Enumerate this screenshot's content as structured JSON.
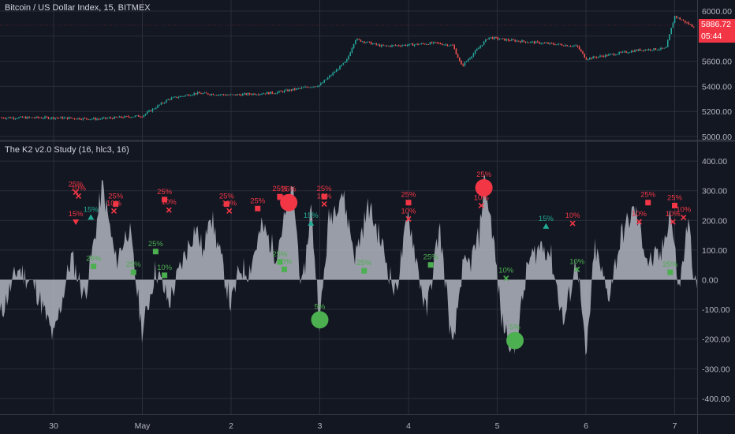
{
  "colors": {
    "background": "#131722",
    "grid": "#2a2e39",
    "text": "#b2b5be",
    "candle_up": "#26a69a",
    "candle_down": "#ef5350",
    "hist_fill": "#b2b5be",
    "signal_red": "#f23645",
    "signal_green": "#4caf50",
    "signal_teal": "#22ab94"
  },
  "top_pane": {
    "title": "Bitcoin / US Dollar Index, 15, BITMEX",
    "last_price": "5886.72",
    "countdown": "05:44",
    "y_ticks": [
      "6000.00",
      "5800.00",
      "5600.00",
      "5400.00",
      "5200.00",
      "5000.00"
    ]
  },
  "bottom_pane": {
    "title": "The K2 v2.0 Study (16, hlc3, 16)",
    "y_ticks": [
      "400.00",
      "300.00",
      "200.00",
      "100.00",
      "0.00",
      "-100.00",
      "-200.00",
      "-300.00",
      "-400.00"
    ]
  },
  "x_axis": {
    "ticks": [
      "30",
      "May",
      "2",
      "3",
      "4",
      "5",
      "6",
      "7"
    ]
  },
  "chart_data": [
    {
      "type": "line",
      "title": "Bitcoin / US Dollar Index, 15, BITMEX",
      "note": "candlestick price chart (approximate path)",
      "ylim": [
        5000,
        6000
      ],
      "x": [
        0,
        0.5,
        1,
        1.3,
        1.6,
        2,
        2.5,
        3,
        3.3,
        3.4,
        3.7,
        4,
        4.3,
        4.5,
        4.6,
        4.9,
        5.1,
        5.5,
        5.9,
        6,
        6.3,
        6.6,
        6.9,
        7,
        7.2,
        7.3
      ],
      "values": [
        5150,
        5140,
        5165,
        5300,
        5345,
        5330,
        5350,
        5410,
        5600,
        5775,
        5720,
        5730,
        5745,
        5725,
        5560,
        5790,
        5770,
        5745,
        5720,
        5620,
        5655,
        5690,
        5700,
        5960,
        5880,
        5887
      ]
    },
    {
      "type": "area",
      "title": "The K2 v2.0 Study (16, hlc3, 16)",
      "ylim": [
        -450,
        450
      ],
      "x": [
        -0.6,
        -0.4,
        -0.2,
        0.0,
        0.2,
        0.35,
        0.45,
        0.55,
        0.7,
        0.85,
        1.0,
        1.15,
        1.3,
        1.45,
        1.6,
        1.7,
        1.75,
        1.85,
        2.0,
        2.1,
        2.2,
        2.35,
        2.5,
        2.6,
        2.7,
        2.8,
        2.9,
        3.0,
        3.1,
        3.25,
        3.4,
        3.55,
        3.7,
        3.85,
        4.0,
        4.2,
        4.35,
        4.5,
        4.6,
        4.7,
        4.8,
        4.85,
        4.95,
        5.05,
        5.2,
        5.35,
        5.5,
        5.6,
        5.75,
        5.9,
        6.0,
        6.1,
        6.25,
        6.4,
        6.55,
        6.7,
        6.85,
        6.95,
        7.05,
        7.15,
        7.25
      ],
      "values": [
        -120,
        40,
        -30,
        -200,
        80,
        -60,
        120,
        320,
        60,
        180,
        -180,
        40,
        -80,
        60,
        180,
        80,
        250,
        120,
        -90,
        40,
        30,
        180,
        90,
        200,
        300,
        -50,
        250,
        -150,
        200,
        300,
        80,
        250,
        120,
        -50,
        220,
        -120,
        180,
        -250,
        30,
        60,
        150,
        340,
        160,
        -140,
        -240,
        60,
        120,
        90,
        -150,
        80,
        -280,
        110,
        -60,
        150,
        240,
        60,
        80,
        240,
        -40,
        200,
        -60
      ]
    }
  ],
  "signals": [
    {
      "kind": "x_red",
      "x": 0.25,
      "y": 295,
      "label": "25%"
    },
    {
      "kind": "x_red",
      "x": 0.28,
      "y": 282,
      "label": "10%"
    },
    {
      "kind": "tri_down_red",
      "x": 0.25,
      "y": 195,
      "label": "15%"
    },
    {
      "kind": "tri_up_teal",
      "x": 0.42,
      "y": 210,
      "label": "15%"
    },
    {
      "kind": "sq_red",
      "x": 0.7,
      "y": 255,
      "label": "25%"
    },
    {
      "kind": "x_red",
      "x": 0.68,
      "y": 232,
      "label": "10%"
    },
    {
      "kind": "sq_green",
      "x": 0.45,
      "y": 45,
      "label": "25%"
    },
    {
      "kind": "sq_green",
      "x": 0.9,
      "y": 25,
      "label": "25%"
    },
    {
      "kind": "sq_red",
      "x": 1.25,
      "y": 270,
      "label": "25%"
    },
    {
      "kind": "x_red",
      "x": 1.3,
      "y": 235,
      "label": "10%"
    },
    {
      "kind": "sq_red",
      "x": 1.95,
      "y": 255,
      "label": "25%"
    },
    {
      "kind": "x_red",
      "x": 1.98,
      "y": 232,
      "label": "10%"
    },
    {
      "kind": "sq_green",
      "x": 1.15,
      "y": 95,
      "label": "25%"
    },
    {
      "kind": "sq_green",
      "x": 1.25,
      "y": 15,
      "label": "10%"
    },
    {
      "kind": "sq_red",
      "x": 2.3,
      "y": 240,
      "label": "25%"
    },
    {
      "kind": "sq_red",
      "x": 2.55,
      "y": 280,
      "label": "25%"
    },
    {
      "kind": "x_red",
      "x": 2.6,
      "y": 250,
      "label": "10%"
    },
    {
      "kind": "circle_red",
      "x": 2.65,
      "y": 260,
      "label": "25%"
    },
    {
      "kind": "sq_green",
      "x": 2.55,
      "y": 60,
      "label": "25%"
    },
    {
      "kind": "sq_green",
      "x": 2.6,
      "y": 35,
      "label": "10%"
    },
    {
      "kind": "tri_up_teal",
      "x": 2.9,
      "y": 190,
      "label": "15%"
    },
    {
      "kind": "circle_green",
      "x": 3.0,
      "y": -135,
      "label": "5%"
    },
    {
      "kind": "sq_red",
      "x": 3.05,
      "y": 280,
      "label": "25%"
    },
    {
      "kind": "x_red",
      "x": 3.05,
      "y": 255,
      "label": "10%"
    },
    {
      "kind": "sq_green",
      "x": 3.5,
      "y": 30,
      "label": "25%"
    },
    {
      "kind": "sq_red",
      "x": 4.0,
      "y": 260,
      "label": "25%"
    },
    {
      "kind": "x_red",
      "x": 4.0,
      "y": 205,
      "label": "10%"
    },
    {
      "kind": "sq_green",
      "x": 4.25,
      "y": 50,
      "label": "25%"
    },
    {
      "kind": "circle_red",
      "x": 4.85,
      "y": 310,
      "label": "25%"
    },
    {
      "kind": "x_red",
      "x": 4.82,
      "y": 250,
      "label": "10%"
    },
    {
      "kind": "x_green",
      "x": 5.1,
      "y": 5,
      "label": "10%"
    },
    {
      "kind": "circle_green",
      "x": 5.2,
      "y": -205,
      "label": "5%"
    },
    {
      "kind": "tri_up_teal",
      "x": 5.55,
      "y": 180,
      "label": "15%"
    },
    {
      "kind": "x_red",
      "x": 5.85,
      "y": 190,
      "label": "10%"
    },
    {
      "kind": "x_green",
      "x": 5.9,
      "y": 35,
      "label": "10%"
    },
    {
      "kind": "x_red",
      "x": 6.6,
      "y": 195,
      "label": "10%"
    },
    {
      "kind": "sq_red",
      "x": 6.7,
      "y": 260,
      "label": "25%"
    },
    {
      "kind": "sq_green",
      "x": 6.95,
      "y": 25,
      "label": "25%"
    },
    {
      "kind": "sq_red",
      "x": 7.0,
      "y": 250,
      "label": "25%"
    },
    {
      "kind": "x_red",
      "x": 6.98,
      "y": 195,
      "label": "10%"
    },
    {
      "kind": "x_red",
      "x": 7.1,
      "y": 210,
      "label": "10%"
    }
  ]
}
